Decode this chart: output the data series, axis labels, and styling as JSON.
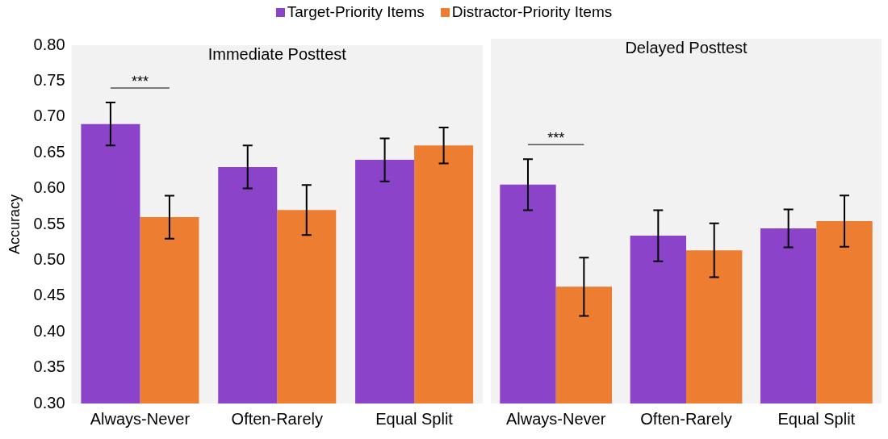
{
  "chart_data": [
    {
      "type": "bar",
      "title": "Immediate Posttest",
      "ylabel": "Accuracy",
      "categories": [
        "Always-Never",
        "Often-Rarely",
        "Equal Split"
      ],
      "ylim": [
        0.3,
        0.8
      ],
      "yticks": [
        {
          "value": 0.3,
          "label": "0.30"
        },
        {
          "value": 0.35,
          "label": "0.35"
        },
        {
          "value": 0.4,
          "label": "0.40"
        },
        {
          "value": 0.45,
          "label": "0.45"
        },
        {
          "value": 0.5,
          "label": "0.50"
        },
        {
          "value": 0.55,
          "label": "0.55"
        },
        {
          "value": 0.6,
          "label": "0.60"
        },
        {
          "value": 0.65,
          "label": "0.65"
        },
        {
          "value": 0.7,
          "label": "0.70"
        },
        {
          "value": 0.75,
          "label": "0.75"
        },
        {
          "value": 0.8,
          "label": "0.80"
        }
      ],
      "grid": false,
      "legend": "top",
      "annotations": [
        "***"
      ],
      "series": [
        {
          "name": "Target-Priority Items",
          "color": "#8b44c9",
          "values": [
            0.69,
            0.63,
            0.64
          ],
          "errors": [
            0.03,
            0.03,
            0.03
          ]
        },
        {
          "name": "Distractor-Priority Items",
          "color": "#ed7d31",
          "values": [
            0.56,
            0.57,
            0.66
          ],
          "errors": [
            0.03,
            0.035,
            0.025
          ]
        }
      ]
    },
    {
      "type": "bar",
      "title": "Delayed Posttest",
      "categories": [
        "Always-Never",
        "Often-Rarely",
        "Equal Split"
      ],
      "ylim": [
        0.3,
        0.8
      ],
      "tick_labels": "x",
      "grid": false,
      "annotations": [
        "***"
      ],
      "series": [
        {
          "color": "#8b44c9",
          "values": [
            0.6,
            0.53,
            0.54
          ],
          "errors": [
            0.035,
            0.035,
            0.026
          ]
        },
        {
          "color": "#ed7d31",
          "values": [
            0.46,
            0.51,
            0.55
          ],
          "errors": [
            0.04,
            0.037,
            0.035
          ]
        }
      ]
    }
  ]
}
